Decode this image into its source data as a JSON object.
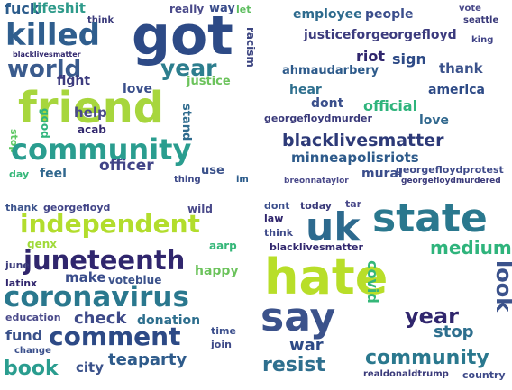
{
  "panels": [
    {
      "name": "top-left",
      "words": [
        [
          "fuck",
          16,
          5,
          2,
          "#2b5b8b",
          0
        ],
        [
          "lifeshit",
          15,
          36,
          2,
          "#2e9a8a",
          0
        ],
        [
          "really",
          12,
          188,
          4,
          "#4a4a8a",
          0
        ],
        [
          "way",
          13,
          232,
          3,
          "#3b4e8c",
          0
        ],
        [
          "let",
          11,
          262,
          5,
          "#5cbd5e",
          0
        ],
        [
          "think",
          10,
          97,
          18,
          "#3a3a7a",
          0
        ],
        [
          "got",
          60,
          146,
          10,
          "#2d4a86",
          0
        ],
        [
          "killed",
          34,
          6,
          22,
          "#2f5e8e",
          0
        ],
        [
          "blacklivesmatter",
          8,
          14,
          57,
          "#30266d",
          0
        ],
        [
          "world",
          26,
          8,
          64,
          "#3a5b8d",
          0
        ],
        [
          "year",
          25,
          178,
          63,
          "#2d7e8e",
          0
        ],
        [
          "racism",
          12,
          272,
          30,
          "#3b4480",
          90
        ],
        [
          "fight",
          14,
          63,
          83,
          "#3c3b7e",
          0
        ],
        [
          "love",
          14,
          136,
          92,
          "#3a4f8b",
          0
        ],
        [
          "justice",
          13,
          207,
          84,
          "#6cc35c",
          0
        ],
        [
          "friend",
          48,
          20,
          96,
          "#a7d63d",
          0
        ],
        [
          "help",
          15,
          82,
          118,
          "#4a4a8a",
          0
        ],
        [
          "stand",
          13,
          200,
          115,
          "#2f6b8e",
          90
        ],
        [
          "good",
          12,
          44,
          120,
          "#2fb47c",
          90
        ],
        [
          "acab",
          12,
          86,
          138,
          "#30266d",
          0
        ],
        [
          "stop",
          11,
          10,
          143,
          "#5dc863",
          90
        ],
        [
          "community",
          32,
          12,
          150,
          "#2a9d8f",
          0
        ],
        [
          "officer",
          17,
          110,
          176,
          "#414487",
          0
        ],
        [
          "feel",
          14,
          44,
          186,
          "#31688e",
          0
        ],
        [
          "use",
          13,
          223,
          183,
          "#3b528b",
          0
        ],
        [
          "day",
          11,
          10,
          188,
          "#35b779",
          0
        ],
        [
          "thing",
          10,
          193,
          195,
          "#3e4a89",
          0
        ],
        [
          "im",
          10,
          262,
          195,
          "#2b5b8b",
          0
        ]
      ]
    },
    {
      "name": "top-right",
      "words": [
        [
          "employee",
          14,
          40,
          9,
          "#2e6b8e",
          0
        ],
        [
          "people",
          14,
          120,
          9,
          "#3b4e8c",
          0
        ],
        [
          "vote",
          10,
          224,
          5,
          "#4a4a8a",
          0
        ],
        [
          "seattle",
          10,
          229,
          18,
          "#3a3a7a",
          0
        ],
        [
          "justiceforgeorgefloyd",
          14,
          52,
          32,
          "#3c3b7e",
          0
        ],
        [
          "king",
          10,
          238,
          40,
          "#414487",
          0
        ],
        [
          "riot",
          16,
          110,
          55,
          "#30266d",
          0
        ],
        [
          "sign",
          16,
          150,
          58,
          "#2d4a86",
          0
        ],
        [
          "ahmaudarbery",
          13,
          28,
          72,
          "#2e5b8b",
          0
        ],
        [
          "thank",
          15,
          202,
          69,
          "#3b528b",
          0
        ],
        [
          "hear",
          14,
          36,
          93,
          "#2e6f8e",
          0
        ],
        [
          "america",
          14,
          190,
          93,
          "#2d4a86",
          0
        ],
        [
          "dont",
          14,
          60,
          108,
          "#3a4f8b",
          0
        ],
        [
          "official",
          16,
          118,
          110,
          "#2fb47c",
          0
        ],
        [
          "georgefloydmurder",
          11,
          8,
          126,
          "#3a3a7a",
          0
        ],
        [
          "love",
          14,
          180,
          127,
          "#31688e",
          0
        ],
        [
          "blacklivesmatter",
          19,
          28,
          147,
          "#2d3a78",
          0
        ],
        [
          "minneapolisriots",
          15,
          38,
          168,
          "#2e5b8b",
          0
        ],
        [
          "mural",
          14,
          116,
          186,
          "#3b4e8c",
          0
        ],
        [
          "georgefloydprotest",
          11,
          154,
          183,
          "#3e4a89",
          0
        ],
        [
          "breonnataylor",
          9,
          30,
          197,
          "#4a4a8a",
          0
        ],
        [
          "georgefloydmurdered",
          9,
          160,
          197,
          "#3a3a7a",
          0
        ]
      ]
    },
    {
      "name": "bottom-left",
      "words": [
        [
          "thank",
          11,
          6,
          8,
          "#3b528b",
          0
        ],
        [
          "georgefloyd",
          11,
          48,
          8,
          "#414487",
          0
        ],
        [
          "wild",
          12,
          208,
          9,
          "#4a4a8a",
          0
        ],
        [
          "independent",
          28,
          22,
          18,
          "#b2dd2d",
          0
        ],
        [
          "genx",
          12,
          30,
          48,
          "#a0da39",
          0
        ],
        [
          "juneteenth",
          29,
          26,
          58,
          "#30266d",
          0
        ],
        [
          "aarp",
          12,
          232,
          50,
          "#35b779",
          0
        ],
        [
          "june",
          11,
          6,
          72,
          "#3a3a7a",
          0
        ],
        [
          "make",
          15,
          72,
          84,
          "#3b4e8c",
          0
        ],
        [
          "voteblue",
          12,
          120,
          88,
          "#3b528b",
          0
        ],
        [
          "happy",
          14,
          216,
          77,
          "#6cc35c",
          0
        ],
        [
          "latinx",
          11,
          6,
          92,
          "#30266d",
          0
        ],
        [
          "coronavirus",
          31,
          4,
          98,
          "#2a788e",
          0
        ],
        [
          "education",
          11,
          6,
          130,
          "#4a4a8a",
          0
        ],
        [
          "check",
          18,
          82,
          128,
          "#3e4a89",
          0
        ],
        [
          "donation",
          14,
          152,
          132,
          "#2e6f8e",
          0
        ],
        [
          "fund",
          16,
          6,
          148,
          "#3b528b",
          0
        ],
        [
          "comment",
          28,
          54,
          143,
          "#2d4a86",
          0
        ],
        [
          "time",
          11,
          234,
          145,
          "#3b4e8c",
          0
        ],
        [
          "change",
          10,
          16,
          168,
          "#3a4f8b",
          0
        ],
        [
          "join",
          11,
          234,
          160,
          "#3e4a89",
          0
        ],
        [
          "teaparty",
          18,
          120,
          174,
          "#2e5b8b",
          0
        ],
        [
          "book",
          22,
          4,
          182,
          "#2a9d8f",
          0
        ],
        [
          "city",
          15,
          84,
          184,
          "#3b528b",
          0
        ]
      ]
    },
    {
      "name": "bottom-right",
      "words": [
        [
          "dont",
          11,
          8,
          6,
          "#3b4e8c",
          0
        ],
        [
          "today",
          11,
          48,
          6,
          "#3a3a7a",
          0
        ],
        [
          "tar",
          11,
          98,
          4,
          "#4a4a8a",
          0
        ],
        [
          "law",
          11,
          8,
          20,
          "#30266d",
          0
        ],
        [
          "uk",
          44,
          54,
          14,
          "#2d6a8e",
          0
        ],
        [
          "state",
          44,
          128,
          4,
          "#2a788e",
          0
        ],
        [
          "think",
          11,
          8,
          36,
          "#3e4a89",
          0
        ],
        [
          "blacklivesmatter",
          11,
          14,
          52,
          "#30266d",
          0
        ],
        [
          "hate",
          54,
          8,
          64,
          "#b8de29",
          0
        ],
        [
          "medium",
          20,
          192,
          48,
          "#2fb47c",
          0
        ],
        [
          "covid",
          16,
          120,
          72,
          "#35b779",
          90
        ],
        [
          "look",
          24,
          262,
          72,
          "#3b528b",
          90
        ],
        [
          "say",
          44,
          4,
          114,
          "#3b528b",
          0
        ],
        [
          "year",
          24,
          164,
          122,
          "#30266d",
          0
        ],
        [
          "stop",
          18,
          196,
          143,
          "#2e6f8e",
          0
        ],
        [
          "war",
          18,
          36,
          158,
          "#2d4a86",
          0
        ],
        [
          "resist",
          22,
          6,
          178,
          "#2e6f8e",
          0
        ],
        [
          "community",
          22,
          120,
          170,
          "#2a788e",
          0
        ],
        [
          "realdonaldtrump",
          10,
          118,
          194,
          "#3a3a7a",
          0
        ],
        [
          "country",
          11,
          228,
          194,
          "#3e4a89",
          0
        ]
      ]
    }
  ]
}
